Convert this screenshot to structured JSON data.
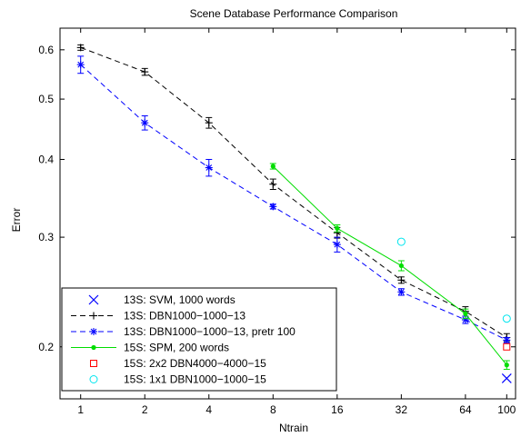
{
  "chart_data": {
    "type": "line",
    "title": "Scene Database Performance Comparison",
    "xlabel": "Ntrain",
    "ylabel": "Error",
    "x_scale": "log2",
    "y_scale": "log",
    "xlim": [
      0.8,
      110
    ],
    "ylim": [
      0.165,
      0.65
    ],
    "xticks": [
      1,
      2,
      4,
      8,
      16,
      32,
      64,
      100
    ],
    "xtick_labels": [
      "1",
      "2",
      "4",
      "8",
      "16",
      "32",
      "64",
      "100"
    ],
    "yticks": [
      0.2,
      0.3,
      0.4,
      0.5,
      0.6
    ],
    "ytick_labels": [
      "0.2",
      "0.3",
      "0.4",
      "0.5",
      "0.6"
    ],
    "grid": false,
    "legend_position": "bottom-left",
    "series": [
      {
        "name": "13S: SVM, 1000 words",
        "color": "#0000ff",
        "marker": "x",
        "line": "none",
        "x": [
          100
        ],
        "y": [
          0.178
        ],
        "err": [
          0
        ]
      },
      {
        "name": "13S: DBN1000−1000−13",
        "color": "#000000",
        "marker": "+",
        "line": "dashed",
        "x": [
          1,
          2,
          4,
          8,
          16,
          32,
          64,
          100
        ],
        "y": [
          0.605,
          0.553,
          0.458,
          0.365,
          0.305,
          0.256,
          0.228,
          0.207
        ],
        "err": [
          0.006,
          0.007,
          0.009,
          0.007,
          0.006,
          0.003,
          0.004,
          0.003
        ]
      },
      {
        "name": "13S: DBN1000−1000−13, pretr 100",
        "color": "#0000ff",
        "marker": "*",
        "line": "dashed",
        "x": [
          1,
          2,
          4,
          8,
          16,
          32,
          64,
          100
        ],
        "y": [
          0.568,
          0.458,
          0.388,
          0.336,
          0.292,
          0.245,
          0.221,
          0.205
        ],
        "err": [
          0.018,
          0.012,
          0.012,
          0.003,
          0.008,
          0.003,
          0.003,
          0.002
        ]
      },
      {
        "name": "15S: SPM, 200 words",
        "color": "#00dd00",
        "marker": ".",
        "line": "solid",
        "x": [
          8,
          16,
          32,
          64,
          100
        ],
        "y": [
          0.39,
          0.31,
          0.27,
          0.226,
          0.187
        ],
        "err": [
          0.004,
          0.004,
          0.005,
          0.004,
          0.003
        ]
      },
      {
        "name": "15S: 2x2 DBN4000−4000−15",
        "color": "#ff0000",
        "marker": "square",
        "line": "none",
        "x": [
          100
        ],
        "y": [
          0.2
        ],
        "err": [
          0
        ]
      },
      {
        "name": "15S: 1x1 DBN1000−1000−15",
        "color": "#00e5ee",
        "marker": "circle",
        "line": "none",
        "x": [
          32,
          100
        ],
        "y": [
          0.295,
          0.222
        ],
        "err": [
          0,
          0
        ]
      }
    ]
  }
}
